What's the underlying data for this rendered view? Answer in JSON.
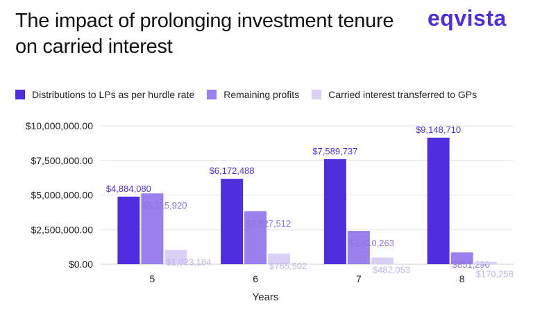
{
  "brand": {
    "logo_text": "eqvista"
  },
  "chart_data": {
    "type": "bar",
    "title": "The impact of prolonging investment tenure on carried interest",
    "xlabel": "Years",
    "ylabel": "",
    "categories": [
      "5",
      "6",
      "7",
      "8"
    ],
    "series": [
      {
        "name": "Distributions to LPs as per hurdle rate",
        "color": "#4f2ee0",
        "values": [
          4884080,
          6172488,
          7589737,
          9148710
        ],
        "labels": [
          "$4,884,080",
          "$6,172,488",
          "$7,589,737",
          "$9,148,710"
        ],
        "label_color": "#4f2ee0"
      },
      {
        "name": "Remaining profits",
        "color": "#9a80ec",
        "values": [
          5115920,
          3827512,
          2410263,
          851290
        ],
        "labels": [
          "$5,115,920",
          "$3,827,512",
          "$2,410,263",
          "$851,290"
        ],
        "label_color": "#8c74e0"
      },
      {
        "name": "Carried interest transferred to GPs",
        "color": "#d8d0f5",
        "values": [
          1023184,
          765502,
          482053,
          170258
        ],
        "labels": [
          "$1,023,184",
          "$765,502",
          "$482,053",
          "$170,258"
        ],
        "label_color": "#c0b5ec"
      }
    ],
    "ylim": [
      0,
      10000000
    ],
    "yticks": [
      0,
      2500000,
      5000000,
      7500000,
      10000000
    ],
    "ytick_labels": [
      "$0.00",
      "$2,500,000.00",
      "$5,000,000.00",
      "$7,500,000.00",
      "$10,000,000.00"
    ],
    "grid": true,
    "legend": "top-left"
  }
}
